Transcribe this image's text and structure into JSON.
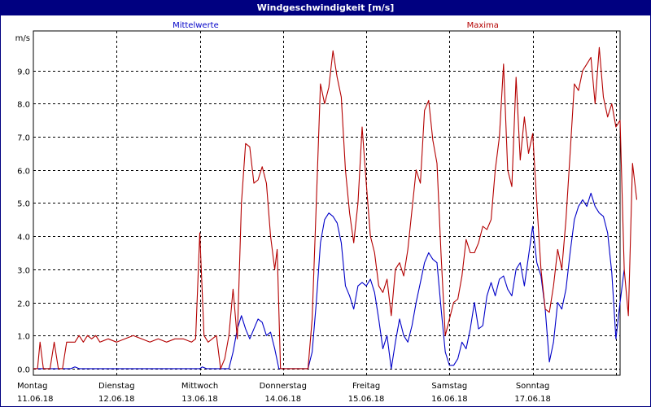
{
  "title": "Windgeschwindigkeit [m/s]",
  "chart_data": {
    "type": "line",
    "title": "Windgeschwindigkeit [m/s]",
    "yunit": "m/s",
    "ylim": [
      -0.2,
      10.2
    ],
    "yticks": [
      "0.0",
      "1.0",
      "2.0",
      "3.0",
      "4.0",
      "5.0",
      "6.0",
      "7.0",
      "8.0",
      "9.0"
    ],
    "xlim": [
      0,
      7.05
    ],
    "grid": true,
    "legend": "top",
    "day_labels": [
      {
        "day": "Montag",
        "date": "11.06.18"
      },
      {
        "day": "Dienstag",
        "date": "12.06.18"
      },
      {
        "day": "Mittwoch",
        "date": "13.06.18"
      },
      {
        "day": "Donnerstag",
        "date": "14.06.18"
      },
      {
        "day": "Freitag",
        "date": "15.06.18"
      },
      {
        "day": "Samstag",
        "date": "16.06.18"
      },
      {
        "day": "Sonntag",
        "date": "17.06.18"
      }
    ],
    "series": [
      {
        "name": "Mittelwerte",
        "color": "#0000c8",
        "points": [
          [
            0,
            0
          ],
          [
            0.45,
            0
          ],
          [
            0.5,
            0.05
          ],
          [
            0.55,
            0
          ],
          [
            2.0,
            0
          ],
          [
            2.03,
            0.05
          ],
          [
            2.08,
            0
          ],
          [
            2.35,
            0
          ],
          [
            2.4,
            0.5
          ],
          [
            2.45,
            1.2
          ],
          [
            2.5,
            1.6
          ],
          [
            2.55,
            1.2
          ],
          [
            2.6,
            0.9
          ],
          [
            2.65,
            1.2
          ],
          [
            2.7,
            1.5
          ],
          [
            2.75,
            1.4
          ],
          [
            2.8,
            1.0
          ],
          [
            2.85,
            1.1
          ],
          [
            2.9,
            0.6
          ],
          [
            2.95,
            0
          ],
          [
            3.3,
            0
          ],
          [
            3.35,
            0.5
          ],
          [
            3.4,
            2.0
          ],
          [
            3.45,
            3.8
          ],
          [
            3.5,
            4.5
          ],
          [
            3.55,
            4.7
          ],
          [
            3.6,
            4.6
          ],
          [
            3.65,
            4.4
          ],
          [
            3.7,
            3.8
          ],
          [
            3.75,
            2.5
          ],
          [
            3.8,
            2.2
          ],
          [
            3.85,
            1.8
          ],
          [
            3.9,
            2.5
          ],
          [
            3.95,
            2.6
          ],
          [
            4.0,
            2.5
          ],
          [
            4.05,
            2.7
          ],
          [
            4.1,
            2.3
          ],
          [
            4.15,
            1.5
          ],
          [
            4.2,
            0.6
          ],
          [
            4.25,
            1.0
          ],
          [
            4.3,
            0.0
          ],
          [
            4.35,
            0.8
          ],
          [
            4.4,
            1.5
          ],
          [
            4.45,
            1.0
          ],
          [
            4.5,
            0.8
          ],
          [
            4.55,
            1.3
          ],
          [
            4.6,
            2.0
          ],
          [
            4.65,
            2.6
          ],
          [
            4.7,
            3.2
          ],
          [
            4.75,
            3.5
          ],
          [
            4.8,
            3.3
          ],
          [
            4.85,
            3.2
          ],
          [
            4.9,
            1.8
          ],
          [
            4.95,
            0.5
          ],
          [
            5.0,
            0.1
          ],
          [
            5.05,
            0.1
          ],
          [
            5.1,
            0.3
          ],
          [
            5.15,
            0.8
          ],
          [
            5.2,
            0.6
          ],
          [
            5.25,
            1.2
          ],
          [
            5.3,
            2.0
          ],
          [
            5.35,
            1.2
          ],
          [
            5.4,
            1.3
          ],
          [
            5.45,
            2.2
          ],
          [
            5.5,
            2.6
          ],
          [
            5.55,
            2.2
          ],
          [
            5.6,
            2.7
          ],
          [
            5.65,
            2.8
          ],
          [
            5.7,
            2.4
          ],
          [
            5.75,
            2.2
          ],
          [
            5.8,
            3.0
          ],
          [
            5.85,
            3.2
          ],
          [
            5.9,
            2.5
          ],
          [
            5.95,
            3.4
          ],
          [
            6.0,
            4.3
          ],
          [
            6.05,
            3.2
          ],
          [
            6.1,
            2.8
          ],
          [
            6.15,
            1.8
          ],
          [
            6.2,
            0.2
          ],
          [
            6.25,
            0.8
          ],
          [
            6.3,
            2.0
          ],
          [
            6.35,
            1.8
          ],
          [
            6.4,
            2.4
          ],
          [
            6.45,
            3.5
          ],
          [
            6.5,
            4.5
          ],
          [
            6.55,
            4.9
          ],
          [
            6.6,
            5.1
          ],
          [
            6.65,
            4.9
          ],
          [
            6.7,
            5.3
          ],
          [
            6.75,
            4.9
          ],
          [
            6.8,
            4.7
          ],
          [
            6.85,
            4.6
          ],
          [
            6.9,
            4.1
          ],
          [
            6.95,
            2.9
          ],
          [
            7.0,
            0.9
          ],
          [
            7.05,
            2.0
          ],
          [
            7.1,
            3.0
          ]
        ]
      },
      {
        "name": "Maxima",
        "color": "#b40000",
        "points": [
          [
            0,
            0
          ],
          [
            0.05,
            0
          ],
          [
            0.08,
            0.8
          ],
          [
            0.12,
            0
          ],
          [
            0.2,
            0
          ],
          [
            0.25,
            0.8
          ],
          [
            0.3,
            0
          ],
          [
            0.35,
            0
          ],
          [
            0.4,
            0.8
          ],
          [
            0.5,
            0.8
          ],
          [
            0.55,
            1.0
          ],
          [
            0.6,
            0.8
          ],
          [
            0.65,
            1.0
          ],
          [
            0.7,
            0.9
          ],
          [
            0.75,
            1.0
          ],
          [
            0.8,
            0.8
          ],
          [
            0.9,
            0.9
          ],
          [
            1.0,
            0.8
          ],
          [
            1.1,
            0.9
          ],
          [
            1.2,
            1.0
          ],
          [
            1.3,
            0.9
          ],
          [
            1.4,
            0.8
          ],
          [
            1.5,
            0.9
          ],
          [
            1.6,
            0.8
          ],
          [
            1.7,
            0.9
          ],
          [
            1.8,
            0.9
          ],
          [
            1.9,
            0.8
          ],
          [
            1.95,
            0.9
          ],
          [
            2.0,
            4.1
          ],
          [
            2.05,
            1.0
          ],
          [
            2.1,
            0.8
          ],
          [
            2.2,
            1.0
          ],
          [
            2.25,
            0
          ],
          [
            2.3,
            0.3
          ],
          [
            2.35,
            1.0
          ],
          [
            2.4,
            2.4
          ],
          [
            2.45,
            0.9
          ],
          [
            2.5,
            5.0
          ],
          [
            2.55,
            6.8
          ],
          [
            2.6,
            6.7
          ],
          [
            2.65,
            5.6
          ],
          [
            2.7,
            5.7
          ],
          [
            2.75,
            6.1
          ],
          [
            2.8,
            5.6
          ],
          [
            2.85,
            4.0
          ],
          [
            2.9,
            3.0
          ],
          [
            2.93,
            3.6
          ],
          [
            2.97,
            0
          ],
          [
            3.3,
            0
          ],
          [
            3.35,
            1.5
          ],
          [
            3.4,
            5.0
          ],
          [
            3.45,
            8.6
          ],
          [
            3.5,
            8.0
          ],
          [
            3.55,
            8.5
          ],
          [
            3.6,
            9.6
          ],
          [
            3.65,
            8.8
          ],
          [
            3.7,
            8.2
          ],
          [
            3.75,
            6.0
          ],
          [
            3.8,
            4.7
          ],
          [
            3.85,
            3.8
          ],
          [
            3.9,
            5.0
          ],
          [
            3.95,
            7.3
          ],
          [
            4.0,
            5.6
          ],
          [
            4.05,
            4.0
          ],
          [
            4.1,
            3.5
          ],
          [
            4.15,
            2.5
          ],
          [
            4.2,
            2.3
          ],
          [
            4.25,
            2.7
          ],
          [
            4.3,
            1.6
          ],
          [
            4.35,
            3.0
          ],
          [
            4.4,
            3.2
          ],
          [
            4.45,
            2.8
          ],
          [
            4.5,
            3.6
          ],
          [
            4.55,
            4.8
          ],
          [
            4.6,
            6.0
          ],
          [
            4.65,
            5.6
          ],
          [
            4.7,
            7.8
          ],
          [
            4.75,
            8.1
          ],
          [
            4.8,
            6.9
          ],
          [
            4.85,
            6.2
          ],
          [
            4.9,
            3.4
          ],
          [
            4.95,
            1.0
          ],
          [
            5.0,
            1.5
          ],
          [
            5.05,
            2.0
          ],
          [
            5.1,
            2.1
          ],
          [
            5.15,
            2.8
          ],
          [
            5.2,
            3.9
          ],
          [
            5.25,
            3.5
          ],
          [
            5.3,
            3.5
          ],
          [
            5.35,
            3.8
          ],
          [
            5.4,
            4.3
          ],
          [
            5.45,
            4.2
          ],
          [
            5.5,
            4.5
          ],
          [
            5.55,
            6.0
          ],
          [
            5.6,
            7.0
          ],
          [
            5.65,
            9.2
          ],
          [
            5.7,
            6.0
          ],
          [
            5.75,
            5.5
          ],
          [
            5.8,
            8.8
          ],
          [
            5.85,
            6.3
          ],
          [
            5.9,
            7.6
          ],
          [
            5.95,
            6.5
          ],
          [
            6.0,
            7.1
          ],
          [
            6.05,
            5.0
          ],
          [
            6.1,
            3.0
          ],
          [
            6.15,
            1.8
          ],
          [
            6.2,
            1.7
          ],
          [
            6.25,
            2.5
          ],
          [
            6.3,
            3.6
          ],
          [
            6.35,
            3.0
          ],
          [
            6.4,
            4.5
          ],
          [
            6.45,
            6.5
          ],
          [
            6.5,
            8.6
          ],
          [
            6.55,
            8.4
          ],
          [
            6.6,
            9.0
          ],
          [
            6.65,
            9.2
          ],
          [
            6.7,
            9.4
          ],
          [
            6.75,
            8.0
          ],
          [
            6.8,
            9.7
          ],
          [
            6.85,
            8.2
          ],
          [
            6.9,
            7.6
          ],
          [
            6.95,
            8.0
          ],
          [
            7.0,
            7.3
          ],
          [
            7.05,
            7.5
          ],
          [
            7.1,
            3.0
          ],
          [
            7.15,
            1.6
          ],
          [
            7.2,
            6.2
          ],
          [
            7.25,
            5.1
          ]
        ]
      }
    ]
  }
}
